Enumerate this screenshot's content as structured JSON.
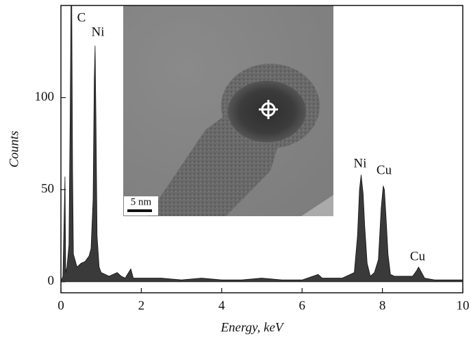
{
  "chart_data": {
    "type": "area",
    "x_label": "Energy, keV",
    "y_label": "Counts",
    "x": [
      0,
      0.05,
      0.1,
      0.12,
      0.15,
      0.2,
      0.23,
      0.25,
      0.27,
      0.29,
      0.31,
      0.35,
      0.4,
      0.5,
      0.6,
      0.7,
      0.75,
      0.8,
      0.83,
      0.85,
      0.87,
      0.9,
      0.95,
      1.0,
      1.2,
      1.4,
      1.5,
      1.6,
      1.74,
      1.8,
      2.0,
      2.5,
      3,
      3.5,
      4,
      4.5,
      5,
      5.5,
      6,
      6.4,
      6.5,
      7,
      7.3,
      7.38,
      7.43,
      7.47,
      7.52,
      7.56,
      7.62,
      7.7,
      7.8,
      7.9,
      7.97,
      8.02,
      8.05,
      8.09,
      8.14,
      8.2,
      8.3,
      8.5,
      8.75,
      8.85,
      8.9,
      8.95,
      9.05,
      9.3,
      9.6,
      10
    ],
    "values": [
      0,
      3,
      57,
      5,
      8,
      20,
      90,
      150,
      150,
      60,
      15,
      12,
      8,
      10,
      11,
      14,
      18,
      45,
      110,
      128,
      90,
      25,
      8,
      5,
      3,
      5,
      3,
      2,
      7,
      2,
      2,
      2,
      1,
      2,
      1,
      1,
      2,
      1,
      1,
      4,
      2,
      2,
      5,
      25,
      50,
      58,
      48,
      30,
      10,
      3,
      5,
      12,
      40,
      52,
      50,
      35,
      15,
      4,
      3,
      3,
      3,
      6,
      8,
      6,
      2,
      1,
      1,
      1
    ],
    "color": "#3a3a3a",
    "xlim": [
      0,
      10
    ],
    "xticks": [
      0,
      2,
      4,
      6,
      8,
      10
    ],
    "ylim": [
      -6,
      150
    ],
    "yticks": [
      0,
      50,
      100
    ],
    "annotations": [
      "C",
      "Ni",
      "Ni",
      "Cu",
      "Cu"
    ],
    "inset_scale_bar": "5 nm"
  }
}
